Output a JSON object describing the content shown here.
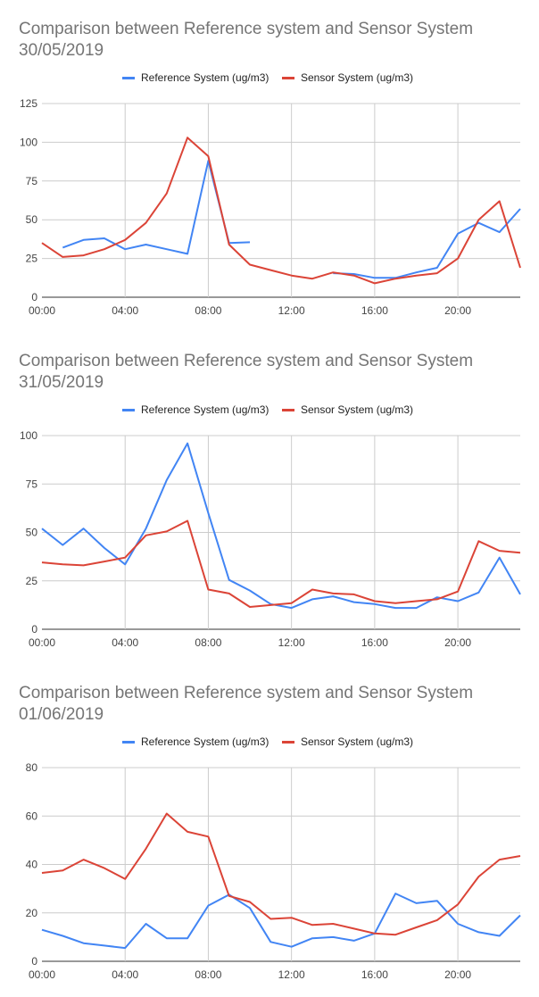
{
  "colors": {
    "reference": "#4285f4",
    "sensor": "#db4437",
    "grid": "#cccccc",
    "axis": "#333333"
  },
  "chart_data": [
    {
      "type": "line",
      "title_line1": "Comparison between  Reference system and Sensor System",
      "title_line2": "30/05/2019",
      "x": [
        0,
        1,
        2,
        3,
        4,
        5,
        6,
        7,
        8,
        9,
        10,
        11,
        12,
        13,
        14,
        15,
        16,
        17,
        18,
        19,
        20,
        21,
        22,
        23
      ],
      "xticks": [
        "00:00",
        "04:00",
        "08:00",
        "12:00",
        "16:00",
        "20:00"
      ],
      "ylim": [
        0,
        125
      ],
      "yticks": [
        0,
        25,
        50,
        75,
        100,
        125
      ],
      "legend_position": "top",
      "series": [
        {
          "name": "Reference System (ug/m3)",
          "values": [
            null,
            32,
            37,
            38,
            31,
            34,
            31,
            28,
            88,
            35,
            35.5,
            null,
            null,
            null,
            15.5,
            15,
            12.5,
            12.5,
            16,
            19,
            41,
            48,
            42,
            57
          ]
        },
        {
          "name": "Sensor System (ug/m3)",
          "values": [
            35,
            26,
            27,
            31,
            37,
            48,
            67,
            103,
            91,
            34,
            21,
            17.5,
            14,
            12,
            16,
            14,
            9,
            12,
            14,
            15.5,
            25,
            50,
            62,
            19
          ]
        }
      ]
    },
    {
      "type": "line",
      "title_line1": "Comparison between  Reference system and Sensor System",
      "title_line2": "31/05/2019",
      "x": [
        0,
        1,
        2,
        3,
        4,
        5,
        6,
        7,
        8,
        9,
        10,
        11,
        12,
        13,
        14,
        15,
        16,
        17,
        18,
        19,
        20,
        21,
        22,
        23
      ],
      "xticks": [
        "00:00",
        "04:00",
        "08:00",
        "12:00",
        "16:00",
        "20:00"
      ],
      "ylim": [
        0,
        100
      ],
      "yticks": [
        0,
        25,
        50,
        75,
        100
      ],
      "legend_position": "top",
      "series": [
        {
          "name": "Reference System (ug/m3)",
          "values": [
            52,
            43.5,
            52,
            42,
            33.5,
            52,
            77,
            96,
            60,
            25.5,
            20,
            13,
            11,
            15.5,
            17,
            14,
            13,
            11,
            11,
            16.5,
            14.5,
            19,
            37,
            18
          ]
        },
        {
          "name": "Sensor System (ug/m3)",
          "values": [
            34.5,
            33.5,
            33,
            35,
            37,
            48.5,
            50.5,
            56,
            20.5,
            18.5,
            11.5,
            12.5,
            13.5,
            20.5,
            18.5,
            18,
            14.5,
            13.5,
            14.5,
            15.5,
            19.5,
            45.5,
            40.5,
            39.5
          ]
        }
      ]
    },
    {
      "type": "line",
      "title_line1": "Comparison between  Reference system and Sensor System",
      "title_line2": "01/06/2019",
      "x": [
        0,
        1,
        2,
        3,
        4,
        5,
        6,
        7,
        8,
        9,
        10,
        11,
        12,
        13,
        14,
        15,
        16,
        17,
        18,
        19,
        20,
        21,
        22,
        23
      ],
      "xticks": [
        "00:00",
        "04:00",
        "08:00",
        "12:00",
        "16:00",
        "20:00"
      ],
      "ylim": [
        0,
        80
      ],
      "yticks": [
        0,
        20,
        40,
        60,
        80
      ],
      "legend_position": "top",
      "series": [
        {
          "name": "Reference System (ug/m3)",
          "values": [
            13,
            10.5,
            7.5,
            6.5,
            5.5,
            15.5,
            9.5,
            9.5,
            23,
            27.5,
            22,
            8,
            6,
            9.5,
            10,
            8.5,
            11.5,
            28,
            24,
            25,
            15.5,
            12,
            10.5,
            19
          ]
        },
        {
          "name": "Sensor System (ug/m3)",
          "values": [
            36.5,
            37.5,
            42,
            38.5,
            34,
            46.5,
            61,
            53.5,
            51.5,
            27,
            24.5,
            17.5,
            18,
            15,
            15.5,
            13.5,
            11.5,
            11,
            14,
            17,
            23.5,
            35,
            42,
            43.5
          ]
        }
      ]
    }
  ]
}
